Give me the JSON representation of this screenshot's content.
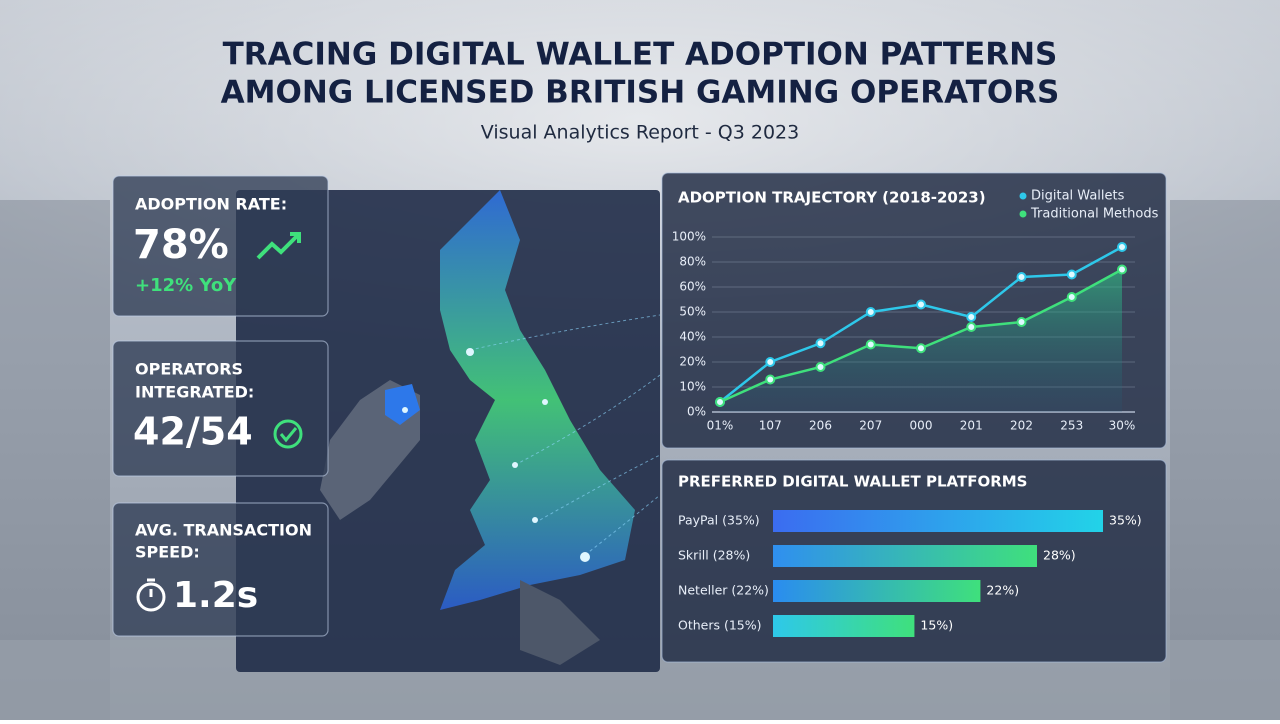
{
  "header": {
    "title_lines": [
      "TRACING DIGITAL WALLET ADOPTION PATTERNS",
      "AMONG LICENSED BRITISH GAMING OPERATORS"
    ],
    "subtitle": "Visual Analytics Report - Q3 2023"
  },
  "kpis": [
    {
      "label": "ADOPTION RATE:",
      "value": "78%",
      "change": "+12% YoY"
    },
    {
      "label_lines": [
        "OPERATORS",
        "INTEGRATED:"
      ],
      "value": "42/54"
    },
    {
      "label_lines": [
        "AVG. TRANSACTION",
        "SPEED:"
      ],
      "value": "1.2s"
    }
  ],
  "chart_data": [
    {
      "type": "line",
      "title": "ADOPTION TRAJECTORY (2018-2023)",
      "categories": [
        "01%",
        "107",
        "206",
        "207",
        "000",
        "201",
        "202",
        "253",
        "30%"
      ],
      "series": [
        {
          "name": "Digital Wallets",
          "color": "#2ec8ea",
          "values": [
            4,
            20,
            35,
            50,
            53,
            48,
            68,
            70,
            92
          ]
        },
        {
          "name": "Traditional Methods",
          "color": "#3fe07c",
          "values": [
            4,
            13,
            18,
            34,
            31,
            44,
            46,
            56,
            74
          ]
        }
      ],
      "ylim": [
        0,
        100
      ],
      "yticks": [
        {
          "value": 0,
          "label": "0%"
        },
        {
          "value": 10,
          "label": "10%"
        },
        {
          "value": 20,
          "label": "20%"
        },
        {
          "value": 40,
          "label": "40%"
        },
        {
          "value": 50,
          "label": "50%"
        },
        {
          "value": 60,
          "label": "60%"
        },
        {
          "value": 80,
          "label": "80%"
        },
        {
          "value": 100,
          "label": "100%"
        }
      ],
      "legend": "top-right"
    },
    {
      "type": "hbar",
      "title": "PREFERRED DIGITAL WALLET PLATFORMS",
      "categories": [
        "PayPal (35%)",
        "Skrill (28%)",
        "Neteller (22%)",
        "Others (15%)"
      ],
      "values": [
        35,
        28,
        22,
        15
      ],
      "value_labels": [
        "35%)",
        "28%)",
        "22%)",
        "15%)"
      ],
      "colors": [
        [
          "#3b6cf0",
          "#22d3e8"
        ],
        [
          "#2f8ff0",
          "#3fe07c"
        ],
        [
          "#2a8cf0",
          "#3fe07c"
        ],
        [
          "#2ec8ea",
          "#3fe07c"
        ]
      ]
    }
  ]
}
